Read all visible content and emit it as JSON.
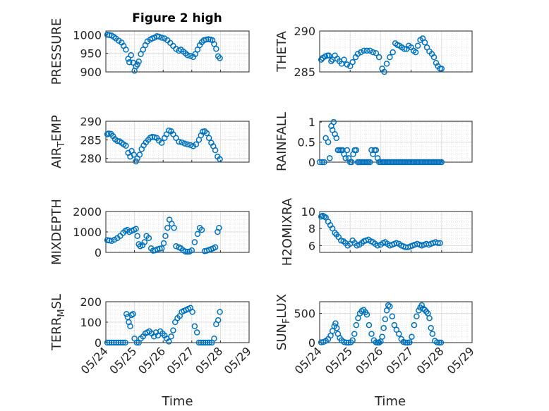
{
  "title": "Figure 2 high",
  "xlabel": "Time",
  "color": "#0072BD",
  "chart_data": [
    {
      "type": "scatter",
      "ylabel": "PRESSURE",
      "ylim": [
        900,
        1010
      ],
      "yticks": [
        "900",
        "950",
        "1000"
      ],
      "xlim": [
        0,
        5
      ],
      "xticks": [
        "05/24",
        "05/25",
        "05/26",
        "05/27",
        "05/28",
        "05/29"
      ],
      "x": [
        0.05,
        0.12,
        0.2,
        0.28,
        0.35,
        0.45,
        0.55,
        0.62,
        0.7,
        0.78,
        0.82,
        0.88,
        0.95,
        1.0,
        1.05,
        1.1,
        1.15,
        1.22,
        1.3,
        1.38,
        1.45,
        1.55,
        1.62,
        1.7,
        1.78,
        1.85,
        1.95,
        2.05,
        2.15,
        2.25,
        2.35,
        2.45,
        2.55,
        2.62,
        2.7,
        2.78,
        2.85,
        2.95,
        3.05,
        3.12,
        3.2,
        3.28,
        3.35,
        3.42,
        3.5,
        3.58,
        3.65,
        3.72,
        3.78,
        3.85,
        3.92,
        3.98
      ],
      "y": [
        1000,
        999,
        998,
        994,
        990,
        984,
        979,
        970,
        960,
        935,
        926,
        945,
        925,
        903,
        915,
        920,
        928,
        948,
        960,
        972,
        982,
        987,
        990,
        992,
        996,
        995,
        992,
        990,
        985,
        978,
        970,
        962,
        957,
        960,
        955,
        950,
        945,
        943,
        940,
        948,
        960,
        972,
        980,
        985,
        987,
        988,
        987,
        985,
        975,
        962,
        942,
        937
      ]
    },
    {
      "type": "scatter",
      "ylabel": "THETA",
      "ylim": [
        285,
        290
      ],
      "yticks": [
        "285",
        "290"
      ],
      "xlim": [
        0,
        5
      ],
      "xticks": [
        "05/24",
        "05/25",
        "05/26",
        "05/27",
        "05/28",
        "05/29"
      ],
      "x": [
        0.05,
        0.1,
        0.18,
        0.25,
        0.3,
        0.38,
        0.42,
        0.5,
        0.58,
        0.65,
        0.72,
        0.8,
        0.9,
        1.0,
        1.08,
        1.18,
        1.25,
        1.35,
        1.45,
        1.55,
        1.65,
        1.75,
        1.85,
        1.95,
        2.05,
        2.12,
        2.2,
        2.3,
        2.4,
        2.48,
        2.55,
        2.62,
        2.7,
        2.78,
        2.85,
        2.92,
        3.0,
        3.08,
        3.15,
        3.22,
        3.3,
        3.38,
        3.45,
        3.52,
        3.6,
        3.68,
        3.75,
        3.82,
        3.88,
        3.95,
        4.0
      ],
      "y": [
        286.5,
        286.7,
        286.9,
        287.0,
        287.0,
        286.3,
        286.5,
        287.0,
        286.6,
        286.3,
        286.0,
        286.5,
        285.9,
        285.7,
        286.2,
        286.8,
        287.2,
        287.4,
        287.6,
        287.6,
        287.6,
        287.4,
        287.3,
        286.8,
        285.4,
        285.0,
        286.0,
        286.8,
        287.4,
        288.5,
        288.3,
        288.2,
        288.0,
        287.8,
        287.8,
        288.2,
        288.0,
        287.6,
        287.4,
        288.2,
        288.9,
        289.1,
        288.6,
        288.0,
        287.5,
        287.2,
        286.8,
        286.1,
        285.7,
        285.4,
        285.4
      ]
    },
    {
      "type": "scatter",
      "ylabel": "AIR_TEMP",
      "ylim": [
        279,
        290
      ],
      "yticks": [
        "280",
        "285",
        "290"
      ],
      "xlim": [
        0,
        5
      ],
      "xticks": [
        "05/24",
        "05/25",
        "05/26",
        "05/27",
        "05/28",
        "05/29"
      ],
      "x": [
        0.05,
        0.1,
        0.18,
        0.25,
        0.32,
        0.4,
        0.48,
        0.55,
        0.62,
        0.7,
        0.78,
        0.85,
        0.9,
        0.98,
        1.05,
        1.1,
        1.18,
        1.25,
        1.32,
        1.4,
        1.48,
        1.55,
        1.62,
        1.7,
        1.78,
        1.85,
        1.95,
        2.05,
        2.12,
        2.2,
        2.28,
        2.35,
        2.45,
        2.55,
        2.65,
        2.75,
        2.85,
        2.95,
        3.05,
        3.15,
        3.25,
        3.32,
        3.38,
        3.45,
        3.52,
        3.6,
        3.68,
        3.75,
        3.82,
        3.9,
        3.98
      ],
      "y": [
        286.5,
        286.7,
        286.6,
        286.0,
        285.2,
        284.7,
        284.6,
        284.2,
        283.8,
        283.4,
        281.5,
        280.5,
        282.0,
        281.0,
        279.2,
        280.0,
        281.0,
        282.5,
        283.5,
        284.3,
        285.0,
        285.6,
        285.8,
        285.7,
        285.5,
        284.8,
        284.2,
        285.5,
        286.5,
        287.5,
        287.3,
        286.5,
        285.5,
        284.5,
        284.3,
        284.0,
        283.8,
        283.6,
        283.3,
        283.8,
        285.0,
        286.2,
        287.2,
        287.3,
        286.8,
        285.5,
        284.2,
        283.3,
        282.2,
        280.5,
        279.8
      ]
    },
    {
      "type": "scatter",
      "ylabel": "RAINFALL",
      "ylim": [
        0,
        1.02
      ],
      "yticks": [
        "0",
        "0.5",
        "1"
      ],
      "xlim": [
        0,
        5
      ],
      "xticks": [
        "05/24",
        "05/25",
        "05/26",
        "05/27",
        "05/28",
        "05/29"
      ],
      "x": [
        0.0,
        0.08,
        0.15,
        0.2,
        0.28,
        0.33,
        0.38,
        0.42,
        0.46,
        0.5,
        0.55,
        0.6,
        0.65,
        0.7,
        0.75,
        0.8,
        0.85,
        0.9,
        0.95,
        1.0,
        1.05,
        1.1,
        1.15,
        1.2,
        1.25,
        1.3,
        1.35,
        1.4,
        1.45,
        1.5,
        1.55,
        1.6,
        1.65,
        1.7,
        1.75,
        1.8,
        1.85,
        1.9,
        1.95,
        2.0,
        2.05,
        2.1,
        2.15,
        2.2,
        2.25,
        2.3,
        2.35,
        2.4,
        2.45,
        2.5,
        2.55,
        2.6,
        2.65,
        2.7,
        2.75,
        2.8,
        2.85,
        2.9,
        2.95,
        3.0,
        3.05,
        3.1,
        3.15,
        3.2,
        3.25,
        3.3,
        3.35,
        3.4,
        3.45,
        3.5,
        3.55,
        3.6,
        3.65,
        3.7,
        3.75,
        3.8,
        3.85,
        3.9,
        3.95,
        4.0
      ],
      "y": [
        0,
        0,
        0,
        0.6,
        0.5,
        0.1,
        0.9,
        0.8,
        1.0,
        0.7,
        0.6,
        0.3,
        0.3,
        0.3,
        0.3,
        0.2,
        0.1,
        0.3,
        0.1,
        0,
        0,
        0.2,
        0.3,
        0.3,
        0,
        0,
        0,
        0,
        0,
        0,
        0,
        0,
        0,
        0.3,
        0.2,
        0.3,
        0.3,
        0.1,
        0,
        0,
        0,
        0,
        0,
        0,
        0,
        0,
        0,
        0,
        0,
        0,
        0,
        0,
        0,
        0,
        0,
        0,
        0,
        0,
        0,
        0,
        0,
        0,
        0,
        0,
        0,
        0,
        0,
        0,
        0,
        0,
        0,
        0,
        0,
        0,
        0,
        0,
        0,
        0,
        0,
        0
      ]
    },
    {
      "type": "scatter",
      "ylabel": "MIXDEPTH",
      "ylim": [
        0,
        2000
      ],
      "yticks": [
        "0",
        "1000",
        "2000"
      ],
      "xlim": [
        0,
        5
      ],
      "xticks": [
        "05/24",
        "05/25",
        "05/26",
        "05/27",
        "05/28",
        "05/29"
      ],
      "x": [
        0.05,
        0.12,
        0.2,
        0.3,
        0.4,
        0.5,
        0.6,
        0.68,
        0.75,
        0.82,
        0.9,
        0.98,
        1.05,
        1.1,
        1.15,
        1.2,
        1.28,
        1.35,
        1.42,
        1.5,
        1.58,
        1.65,
        1.72,
        1.8,
        1.88,
        1.95,
        2.02,
        2.08,
        2.15,
        2.22,
        2.3,
        2.38,
        2.45,
        2.55,
        2.62,
        2.7,
        2.78,
        2.85,
        2.92,
        3.0,
        3.1,
        3.2,
        3.28,
        3.35,
        3.45,
        3.52,
        3.6,
        3.68,
        3.75,
        3.82,
        3.9,
        3.95
      ],
      "y": [
        600,
        580,
        560,
        620,
        700,
        800,
        950,
        1050,
        1100,
        1000,
        1050,
        1100,
        1150,
        800,
        400,
        300,
        350,
        500,
        800,
        700,
        200,
        80,
        100,
        150,
        180,
        200,
        450,
        800,
        1200,
        1600,
        1400,
        1200,
        300,
        250,
        200,
        100,
        40,
        30,
        40,
        100,
        500,
        900,
        1200,
        1100,
        60,
        80,
        120,
        160,
        200,
        250,
        1000,
        1200
      ]
    },
    {
      "type": "scatter",
      "ylabel": "H2OMIXRA",
      "ylim": [
        5.2,
        10
      ],
      "yticks": [
        "6",
        "8",
        "10"
      ],
      "xlim": [
        0,
        5
      ],
      "xticks": [
        "05/24",
        "05/25",
        "05/26",
        "05/27",
        "05/28",
        "05/29"
      ],
      "x": [
        0.05,
        0.1,
        0.15,
        0.2,
        0.28,
        0.35,
        0.42,
        0.5,
        0.55,
        0.62,
        0.7,
        0.78,
        0.85,
        0.92,
        1.0,
        1.08,
        1.15,
        1.22,
        1.3,
        1.38,
        1.45,
        1.52,
        1.6,
        1.68,
        1.75,
        1.82,
        1.9,
        2.0,
        2.08,
        2.15,
        2.22,
        2.3,
        2.38,
        2.45,
        2.52,
        2.6,
        2.68,
        2.75,
        2.82,
        2.9,
        2.98,
        3.05,
        3.12,
        3.2,
        3.28,
        3.35,
        3.42,
        3.5,
        3.58,
        3.65,
        3.72,
        3.8,
        3.88,
        3.95
      ],
      "y": [
        9.4,
        9.5,
        9.4,
        9.3,
        8.8,
        8.4,
        8.0,
        7.5,
        7.3,
        7.0,
        6.6,
        6.5,
        6.3,
        6.0,
        6.2,
        6.6,
        6.3,
        6.0,
        6.1,
        6.3,
        6.5,
        6.6,
        6.7,
        6.5,
        6.4,
        6.2,
        6.0,
        6.1,
        6.3,
        6.4,
        6.2,
        6.0,
        6.1,
        6.2,
        6.3,
        6.2,
        6.0,
        5.9,
        5.8,
        5.8,
        5.9,
        6.0,
        6.1,
        6.2,
        6.1,
        6.0,
        6.1,
        6.2,
        6.1,
        6.2,
        6.3,
        6.4,
        6.3,
        6.3
      ]
    },
    {
      "type": "scatter",
      "ylabel": "TERR_MSL",
      "ylim": [
        0,
        200
      ],
      "yticks": [
        "0",
        "100",
        "200"
      ],
      "xlim": [
        0,
        5
      ],
      "xticks": [
        "05/24",
        "05/25",
        "05/26",
        "05/27",
        "05/28",
        "05/29"
      ],
      "x": [
        0.05,
        0.12,
        0.2,
        0.28,
        0.36,
        0.44,
        0.52,
        0.6,
        0.68,
        0.72,
        0.76,
        0.8,
        0.85,
        0.9,
        0.95,
        1.0,
        1.08,
        1.15,
        1.22,
        1.3,
        1.38,
        1.45,
        1.52,
        1.6,
        1.68,
        1.75,
        1.82,
        1.9,
        1.98,
        2.05,
        2.12,
        2.2,
        2.28,
        2.35,
        2.42,
        2.5,
        2.58,
        2.65,
        2.72,
        2.8,
        2.88,
        2.95,
        3.02,
        3.1,
        3.18,
        3.25,
        3.32,
        3.4,
        3.48,
        3.55,
        3.62,
        3.7,
        3.78,
        3.85,
        3.92,
        3.98
      ],
      "y": [
        0,
        0,
        0,
        0,
        0,
        0,
        0,
        0,
        0,
        140,
        125,
        100,
        80,
        135,
        140,
        20,
        0,
        0,
        20,
        30,
        45,
        50,
        55,
        45,
        30,
        50,
        35,
        55,
        45,
        35,
        20,
        5,
        30,
        60,
        100,
        120,
        130,
        150,
        155,
        160,
        165,
        170,
        150,
        80,
        50,
        0,
        0,
        0,
        0,
        0,
        0,
        0,
        20,
        90,
        110,
        150
      ]
    },
    {
      "type": "scatter",
      "ylabel": "SUN_FLUX",
      "ylim": [
        0,
        700
      ],
      "yticks": [
        "0",
        "500"
      ],
      "xlim": [
        0,
        5
      ],
      "xticks": [
        "05/24",
        "05/25",
        "05/26",
        "05/27",
        "05/28",
        "05/29"
      ],
      "x": [
        0.05,
        0.12,
        0.2,
        0.28,
        0.36,
        0.42,
        0.48,
        0.52,
        0.56,
        0.6,
        0.66,
        0.72,
        0.8,
        0.88,
        0.95,
        1.02,
        1.08,
        1.14,
        1.2,
        1.26,
        1.32,
        1.38,
        1.44,
        1.5,
        1.55,
        1.62,
        1.7,
        1.78,
        1.85,
        1.9,
        1.95,
        2.0,
        2.05,
        2.1,
        2.15,
        2.2,
        2.25,
        2.3,
        2.38,
        2.45,
        2.52,
        2.6,
        2.68,
        2.75,
        2.82,
        2.88,
        2.95,
        3.02,
        3.1,
        3.18,
        3.25,
        3.3,
        3.35,
        3.4,
        3.45,
        3.5,
        3.55,
        3.6,
        3.65,
        3.7,
        3.78,
        3.85,
        3.92,
        3.98
      ],
      "y": [
        5,
        10,
        30,
        60,
        120,
        200,
        280,
        330,
        250,
        150,
        80,
        40,
        10,
        0,
        0,
        5,
        40,
        150,
        300,
        420,
        500,
        540,
        560,
        520,
        480,
        300,
        150,
        40,
        5,
        0,
        0,
        20,
        100,
        250,
        400,
        550,
        640,
        620,
        450,
        300,
        220,
        150,
        60,
        10,
        0,
        0,
        5,
        100,
        300,
        450,
        550,
        600,
        640,
        580,
        560,
        530,
        500,
        420,
        250,
        150,
        30,
        5,
        0,
        0
      ]
    }
  ]
}
